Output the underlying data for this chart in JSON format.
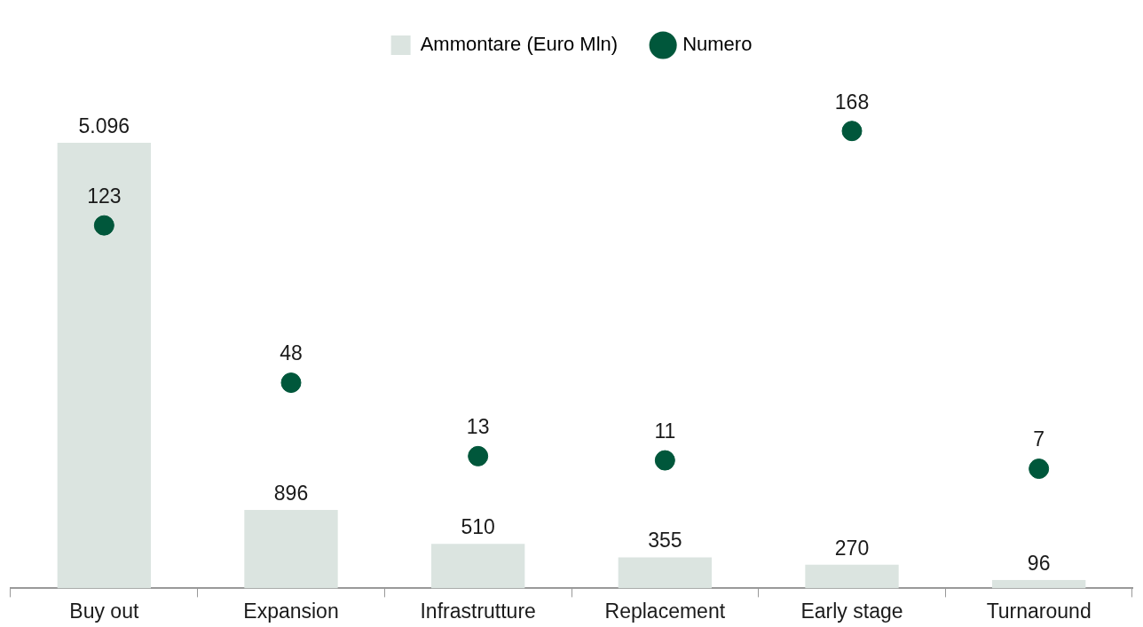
{
  "chart_data": {
    "type": "bar",
    "categories": [
      "Buy out",
      "Expansion",
      "Infrastrutture",
      "Replacement",
      "Early stage",
      "Turnaround"
    ],
    "series": [
      {
        "name": "Ammontare (Euro Mln)",
        "color": "#dbe4e0",
        "values": [
          5096,
          896,
          510,
          355,
          270,
          96
        ],
        "value_labels": [
          "5.096",
          "896",
          "510",
          "355",
          "270",
          "96"
        ]
      },
      {
        "name": "Numero",
        "type": "scatter",
        "axis": "y2",
        "color": "#00573b",
        "values": [
          123,
          48,
          13,
          11,
          168,
          7
        ],
        "value_labels": [
          "123",
          "48",
          "13",
          "11",
          "168",
          "7"
        ]
      }
    ],
    "tick_labels": "x",
    "grid": false,
    "legend": "top",
    "marker": "circle"
  }
}
